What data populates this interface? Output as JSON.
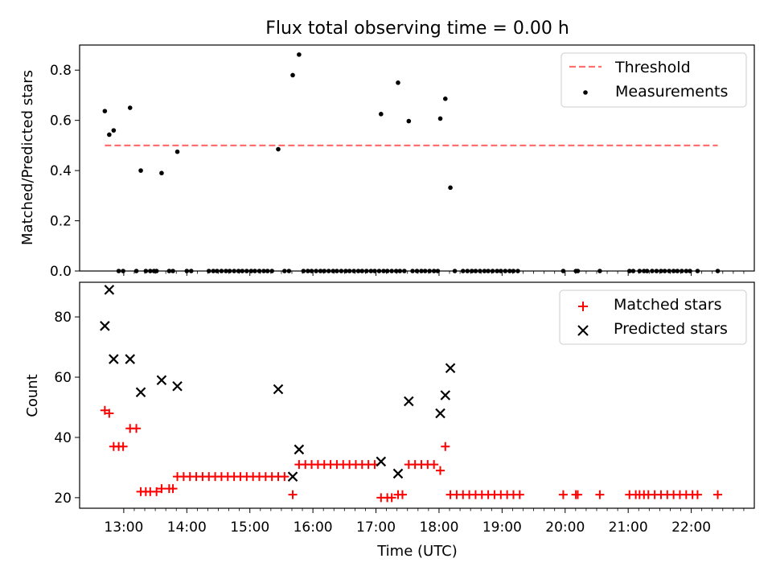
{
  "figure": {
    "title": "Flux total observing time = 0.00 h",
    "xlabel": "Time (UTC)",
    "xtick_labels": [
      "13:00",
      "14:00",
      "15:00",
      "16:00",
      "17:00",
      "18:00",
      "19:00",
      "20:00",
      "21:00",
      "22:00"
    ]
  },
  "chart_data": [
    {
      "type": "scatter",
      "ylabel": "Matched/Predicted stars",
      "xlim": [
        12.3,
        23.0
      ],
      "ylim": [
        0,
        0.9
      ],
      "yticks": [
        0.0,
        0.2,
        0.4,
        0.6,
        0.8
      ],
      "ytick_labels": [
        "0.0",
        "0.2",
        "0.4",
        "0.6",
        "0.8"
      ],
      "legend": {
        "position": "upper right",
        "entries": [
          "Threshold",
          "Measurements"
        ]
      },
      "threshold": {
        "name": "Threshold",
        "value": 0.5,
        "x_start": 12.7,
        "x_end": 22.42,
        "color": "#ff7070"
      },
      "series": [
        {
          "name": "Measurements",
          "marker": "dot",
          "color": "#000000",
          "points": [
            [
              12.7,
              0.637
            ],
            [
              12.77,
              0.543
            ],
            [
              12.84,
              0.56
            ],
            [
              13.1,
              0.65
            ],
            [
              13.27,
              0.4
            ],
            [
              13.6,
              0.39
            ],
            [
              13.85,
              0.475
            ],
            [
              15.45,
              0.485
            ],
            [
              15.68,
              0.78
            ],
            [
              15.78,
              0.862
            ],
            [
              17.08,
              0.625
            ],
            [
              17.35,
              0.75
            ],
            [
              17.52,
              0.597
            ],
            [
              18.02,
              0.607
            ],
            [
              18.1,
              0.686
            ],
            [
              18.18,
              0.332
            ],
            [
              12.92,
              0
            ],
            [
              12.99,
              0
            ],
            [
              13.2,
              0
            ],
            [
              13.35,
              0
            ],
            [
              13.42,
              0
            ],
            [
              13.48,
              0
            ],
            [
              13.52,
              0
            ],
            [
              13.72,
              0
            ],
            [
              13.78,
              0
            ],
            [
              14.0,
              0
            ],
            [
              14.07,
              0
            ],
            [
              14.35,
              0
            ],
            [
              14.42,
              0
            ],
            [
              14.48,
              0
            ],
            [
              14.55,
              0
            ],
            [
              14.62,
              0
            ],
            [
              14.68,
              0
            ],
            [
              14.75,
              0
            ],
            [
              14.82,
              0
            ],
            [
              14.88,
              0
            ],
            [
              14.95,
              0
            ],
            [
              15.02,
              0
            ],
            [
              15.08,
              0
            ],
            [
              15.15,
              0
            ],
            [
              15.22,
              0
            ],
            [
              15.28,
              0
            ],
            [
              15.35,
              0
            ],
            [
              15.55,
              0
            ],
            [
              15.62,
              0
            ],
            [
              15.85,
              0
            ],
            [
              15.92,
              0
            ],
            [
              15.98,
              0
            ],
            [
              16.05,
              0
            ],
            [
              16.12,
              0
            ],
            [
              16.18,
              0
            ],
            [
              16.25,
              0
            ],
            [
              16.32,
              0
            ],
            [
              16.38,
              0
            ],
            [
              16.45,
              0
            ],
            [
              16.52,
              0
            ],
            [
              16.58,
              0
            ],
            [
              16.65,
              0
            ],
            [
              16.72,
              0
            ],
            [
              16.78,
              0
            ],
            [
              16.85,
              0
            ],
            [
              16.92,
              0
            ],
            [
              16.98,
              0
            ],
            [
              17.05,
              0
            ],
            [
              17.12,
              0
            ],
            [
              17.18,
              0
            ],
            [
              17.25,
              0
            ],
            [
              17.32,
              0
            ],
            [
              17.38,
              0
            ],
            [
              17.45,
              0
            ],
            [
              17.58,
              0
            ],
            [
              17.65,
              0
            ],
            [
              17.72,
              0
            ],
            [
              17.78,
              0
            ],
            [
              17.85,
              0
            ],
            [
              17.92,
              0
            ],
            [
              17.98,
              0
            ],
            [
              18.25,
              0
            ],
            [
              18.38,
              0
            ],
            [
              18.45,
              0
            ],
            [
              18.52,
              0
            ],
            [
              18.58,
              0
            ],
            [
              18.65,
              0
            ],
            [
              18.72,
              0
            ],
            [
              18.78,
              0
            ],
            [
              18.85,
              0
            ],
            [
              18.92,
              0
            ],
            [
              18.98,
              0
            ],
            [
              19.05,
              0
            ],
            [
              19.12,
              0
            ],
            [
              19.18,
              0
            ],
            [
              19.25,
              0
            ],
            [
              19.97,
              0
            ],
            [
              20.17,
              0
            ],
            [
              20.2,
              0
            ],
            [
              20.55,
              0
            ],
            [
              21.02,
              0
            ],
            [
              21.08,
              0
            ],
            [
              21.18,
              0
            ],
            [
              21.25,
              0
            ],
            [
              21.3,
              0
            ],
            [
              21.38,
              0
            ],
            [
              21.45,
              0
            ],
            [
              21.52,
              0
            ],
            [
              21.58,
              0
            ],
            [
              21.65,
              0
            ],
            [
              21.72,
              0
            ],
            [
              21.78,
              0
            ],
            [
              21.85,
              0
            ],
            [
              21.92,
              0
            ],
            [
              21.98,
              0
            ],
            [
              22.1,
              0
            ],
            [
              22.42,
              0
            ]
          ]
        }
      ]
    },
    {
      "type": "scatter",
      "ylabel": "Count",
      "xlim": [
        12.3,
        23.0
      ],
      "ylim": [
        16.5,
        91.5
      ],
      "yticks": [
        20,
        40,
        60,
        80
      ],
      "ytick_labels": [
        "20",
        "40",
        "60",
        "80"
      ],
      "legend": {
        "position": "upper right",
        "entries": [
          "Matched stars",
          "Predicted stars"
        ]
      },
      "series": [
        {
          "name": "Matched stars",
          "marker": "plus",
          "color": "#ff0000",
          "points": [
            [
              12.7,
              49
            ],
            [
              12.77,
              48
            ],
            [
              12.84,
              37
            ],
            [
              12.92,
              37
            ],
            [
              12.99,
              37
            ],
            [
              13.1,
              43
            ],
            [
              13.2,
              43
            ],
            [
              13.27,
              22
            ],
            [
              13.35,
              22
            ],
            [
              13.42,
              22
            ],
            [
              13.52,
              22
            ],
            [
              13.6,
              23
            ],
            [
              13.72,
              23
            ],
            [
              13.78,
              23
            ],
            [
              13.85,
              27
            ],
            [
              13.95,
              27
            ],
            [
              14.05,
              27
            ],
            [
              14.15,
              27
            ],
            [
              14.25,
              27
            ],
            [
              14.35,
              27
            ],
            [
              14.45,
              27
            ],
            [
              14.55,
              27
            ],
            [
              14.65,
              27
            ],
            [
              14.75,
              27
            ],
            [
              14.85,
              27
            ],
            [
              14.95,
              27
            ],
            [
              15.05,
              27
            ],
            [
              15.15,
              27
            ],
            [
              15.25,
              27
            ],
            [
              15.35,
              27
            ],
            [
              15.45,
              27
            ],
            [
              15.55,
              27
            ],
            [
              15.68,
              21
            ],
            [
              15.78,
              31
            ],
            [
              15.88,
              31
            ],
            [
              15.98,
              31
            ],
            [
              16.08,
              31
            ],
            [
              16.18,
              31
            ],
            [
              16.28,
              31
            ],
            [
              16.38,
              31
            ],
            [
              16.48,
              31
            ],
            [
              16.58,
              31
            ],
            [
              16.68,
              31
            ],
            [
              16.78,
              31
            ],
            [
              16.88,
              31
            ],
            [
              16.98,
              31
            ],
            [
              17.08,
              20
            ],
            [
              17.18,
              20
            ],
            [
              17.25,
              20
            ],
            [
              17.35,
              21
            ],
            [
              17.42,
              21
            ],
            [
              17.52,
              31
            ],
            [
              17.62,
              31
            ],
            [
              17.72,
              31
            ],
            [
              17.82,
              31
            ],
            [
              17.92,
              31
            ],
            [
              18.02,
              29
            ],
            [
              18.1,
              37
            ],
            [
              18.18,
              21
            ],
            [
              18.28,
              21
            ],
            [
              18.38,
              21
            ],
            [
              18.48,
              21
            ],
            [
              18.58,
              21
            ],
            [
              18.68,
              21
            ],
            [
              18.78,
              21
            ],
            [
              18.88,
              21
            ],
            [
              18.98,
              21
            ],
            [
              19.08,
              21
            ],
            [
              19.18,
              21
            ],
            [
              19.28,
              21
            ],
            [
              19.97,
              21
            ],
            [
              20.17,
              21
            ],
            [
              20.2,
              21
            ],
            [
              20.55,
              21
            ],
            [
              21.02,
              21
            ],
            [
              21.12,
              21
            ],
            [
              21.18,
              21
            ],
            [
              21.25,
              21
            ],
            [
              21.32,
              21
            ],
            [
              21.42,
              21
            ],
            [
              21.52,
              21
            ],
            [
              21.62,
              21
            ],
            [
              21.72,
              21
            ],
            [
              21.82,
              21
            ],
            [
              21.92,
              21
            ],
            [
              22.02,
              21
            ],
            [
              22.1,
              21
            ],
            [
              22.42,
              21
            ]
          ]
        },
        {
          "name": "Predicted stars",
          "marker": "x",
          "color": "#000000",
          "points": [
            [
              12.7,
              77
            ],
            [
              12.77,
              89
            ],
            [
              12.84,
              66
            ],
            [
              13.1,
              66
            ],
            [
              13.27,
              55
            ],
            [
              13.6,
              59
            ],
            [
              13.85,
              57
            ],
            [
              15.45,
              56
            ],
            [
              15.68,
              27
            ],
            [
              15.78,
              36
            ],
            [
              17.08,
              32
            ],
            [
              17.35,
              28
            ],
            [
              17.52,
              52
            ],
            [
              18.02,
              48
            ],
            [
              18.1,
              54
            ],
            [
              18.18,
              63
            ]
          ]
        }
      ]
    }
  ]
}
